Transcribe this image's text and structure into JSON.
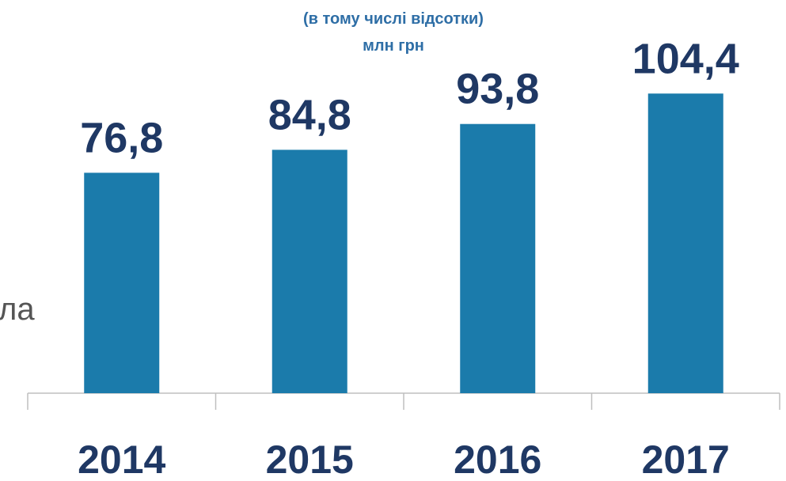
{
  "chart_data": {
    "type": "bar",
    "subtitle": [
      "(в тому числі відсотки)",
      "млн грн"
    ],
    "annotation": "ла",
    "categories": [
      "2014",
      "2015",
      "2016",
      "2017"
    ],
    "values": [
      76.8,
      84.8,
      93.8,
      104.4
    ],
    "value_labels": [
      "76,8",
      "84,8",
      "93,8",
      "104,4"
    ],
    "color": "#1b7bab",
    "ylim": [
      0,
      137
    ]
  }
}
